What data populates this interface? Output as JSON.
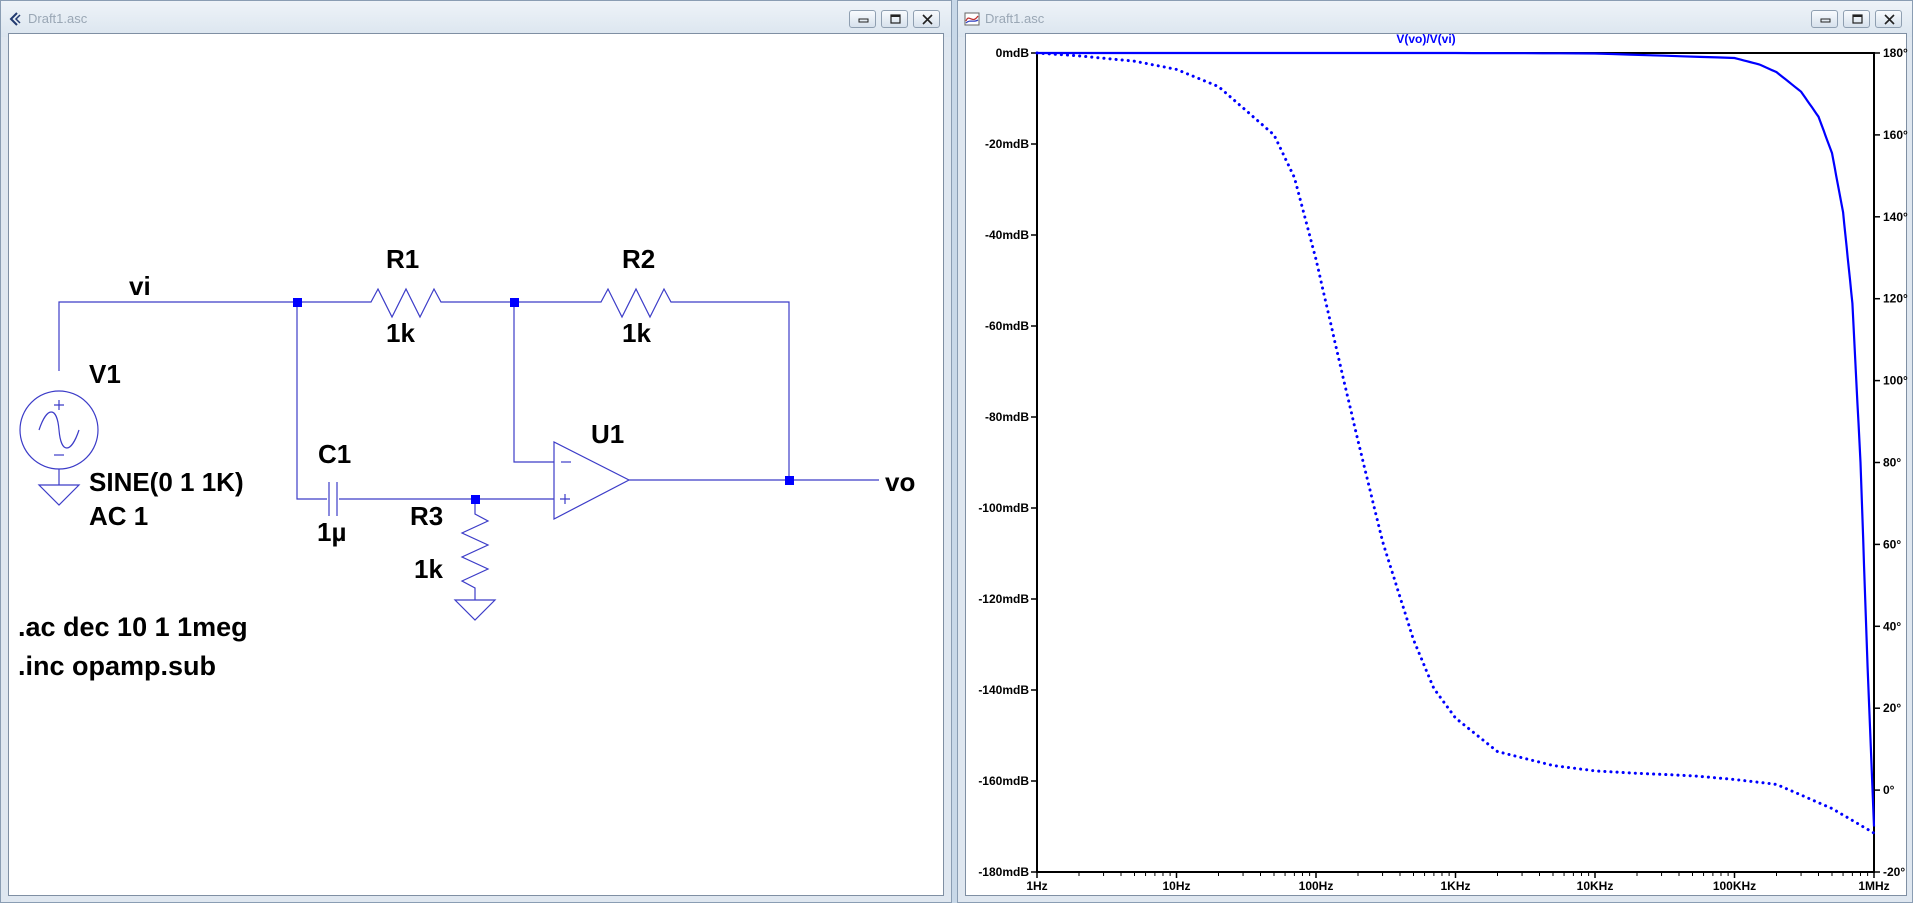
{
  "windows": {
    "schematic": {
      "title": "Draft1.asc"
    },
    "plot": {
      "title": "Draft1.asc"
    }
  },
  "schematic": {
    "source": {
      "name": "V1",
      "value": "SINE(0 1 1K)",
      "ac": "AC 1"
    },
    "r1": {
      "name": "R1",
      "value": "1k"
    },
    "r2": {
      "name": "R2",
      "value": "1k"
    },
    "r3": {
      "name": "R3",
      "value": "1k"
    },
    "c1": {
      "name": "C1",
      "value": "1µ"
    },
    "opamp": {
      "name": "U1"
    },
    "net_in": "vi",
    "net_out": "vo",
    "directive_ac": ".ac dec 10 1 1meg",
    "directive_inc": ".inc opamp.sub"
  },
  "chart_data": {
    "type": "line",
    "title": "V(vo)/V(vi)",
    "x_scale": "log",
    "xlim": [
      1,
      1000000
    ],
    "x_ticks": [
      "1Hz",
      "10Hz",
      "100Hz",
      "1KHz",
      "10KHz",
      "100KHz",
      "1MHz"
    ],
    "y_left_ticks": [
      "0mdB",
      "-20mdB",
      "-40mdB",
      "-60mdB",
      "-80mdB",
      "-100mdB",
      "-120mdB",
      "-140mdB",
      "-160mdB",
      "-180mdB"
    ],
    "y_left_range_mdB": [
      -180,
      0
    ],
    "y_right_ticks": [
      "180°",
      "160°",
      "140°",
      "120°",
      "100°",
      "80°",
      "60°",
      "40°",
      "20°",
      "0°",
      "-20°"
    ],
    "y_right_range_deg": [
      -20,
      180
    ],
    "grid": false,
    "line_color": "#0000ff",
    "series": [
      {
        "style": "solid",
        "axis": "left",
        "x": [
          1,
          10,
          100,
          1000,
          10000,
          100000,
          150000,
          200000,
          300000,
          400000,
          500000,
          600000,
          700000,
          800000,
          900000,
          1000000
        ],
        "y": [
          0,
          0,
          0,
          0,
          -0.1,
          -1.1,
          -2.5,
          -4.2,
          -8.5,
          -14,
          -22,
          -35,
          -55,
          -90,
          -135,
          -170
        ]
      },
      {
        "style": "dotted",
        "axis": "right",
        "x": [
          1,
          2,
          5,
          10,
          20,
          50,
          70,
          100,
          150,
          200,
          300,
          500,
          700,
          1000,
          2000,
          5000,
          10000,
          20000,
          50000,
          100000,
          200000,
          500000,
          1000000
        ],
        "y": [
          180,
          179.3,
          178,
          176,
          171.8,
          160,
          149.6,
          129.6,
          103.4,
          85.3,
          60.7,
          36.7,
          24.8,
          17.6,
          9.4,
          6,
          4.7,
          4.1,
          3.5,
          2.6,
          1.4,
          -4.5,
          -10.5
        ]
      }
    ]
  }
}
